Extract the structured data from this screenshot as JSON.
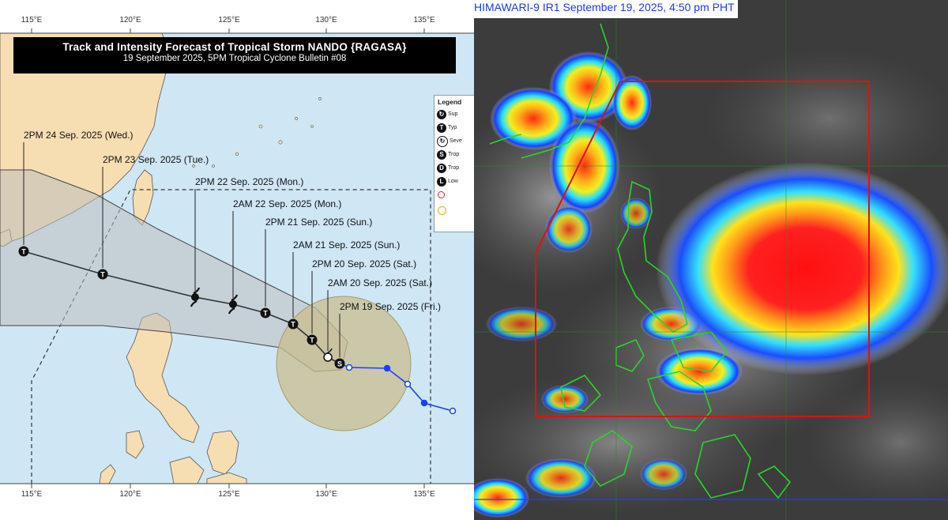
{
  "forecast_map": {
    "title": "Track and Intensity Forecast of Tropical Storm NANDO {RAGASA}",
    "subtitle": "19 September 2025, 5PM Tropical Cyclone Bulletin #08",
    "longitudes": [
      "115°E",
      "120°E",
      "125°E",
      "130°E",
      "135°E"
    ],
    "track_points": [
      {
        "label": "2PM 24 Sep. 2025 (Wed.)",
        "symbol": "T"
      },
      {
        "label": "2PM 23 Sep. 2025 (Tue.)",
        "symbol": "T"
      },
      {
        "label": "2PM 22 Sep. 2025 (Mon.)",
        "symbol": "super-typhoon"
      },
      {
        "label": "2AM 22 Sep. 2025 (Mon.)",
        "symbol": "super-typhoon"
      },
      {
        "label": "2PM 21 Sep. 2025 (Sun.)",
        "symbol": "T"
      },
      {
        "label": "2AM 21 Sep. 2025 (Sun.)",
        "symbol": "T"
      },
      {
        "label": "2PM 20 Sep. 2025 (Sat.)",
        "symbol": "T"
      },
      {
        "label": "2AM 20 Sep. 2025 (Sat.)",
        "symbol": "severe-tropical-storm"
      },
      {
        "label": "2PM 19 Sep. 2025 (Fri.)",
        "symbol": "S"
      }
    ],
    "legend": {
      "title": "Legend",
      "items": [
        {
          "symbol": "super-typhoon",
          "text": "Sup"
        },
        {
          "symbol": "T",
          "text": "Typ"
        },
        {
          "symbol": "severe-tropical-storm",
          "text": "Seve"
        },
        {
          "symbol": "S",
          "text": "Trop"
        },
        {
          "symbol": "D",
          "text": "Trop"
        },
        {
          "symbol": "L",
          "text": "Low"
        }
      ]
    },
    "colors": {
      "sea": "#cfe6f5",
      "land": "#f6deb2",
      "track": "#333333",
      "past_track": "#1c3fff",
      "cone": "#bdbdbd",
      "wind_circle": "#c8bd8f"
    }
  },
  "satellite": {
    "title": "HIMAWARI-9 IR1 September 19, 2025, 4:50 pm PHT",
    "box_color": "#e01010",
    "coast_color": "#2bd42b"
  }
}
